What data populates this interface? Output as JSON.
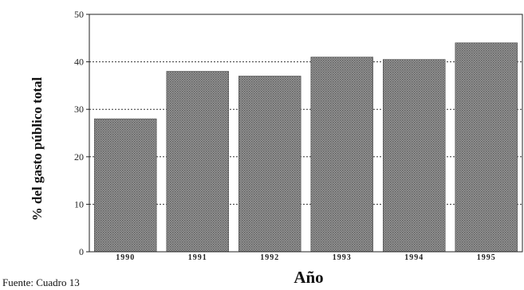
{
  "chart_data": {
    "type": "bar",
    "categories": [
      "1990",
      "1991",
      "1992",
      "1993",
      "1994",
      "1995"
    ],
    "values": [
      28,
      38,
      37,
      41,
      40.5,
      44
    ],
    "xlabel": "Año",
    "ylabel": "% del gasto público total",
    "ylim": [
      0,
      50
    ],
    "yticks": [
      0,
      10,
      20,
      30,
      40,
      50
    ],
    "grid": true,
    "legend": "none",
    "bar_color": "#8a8a8a"
  },
  "source_note": "Fuente: Cuadro 13"
}
